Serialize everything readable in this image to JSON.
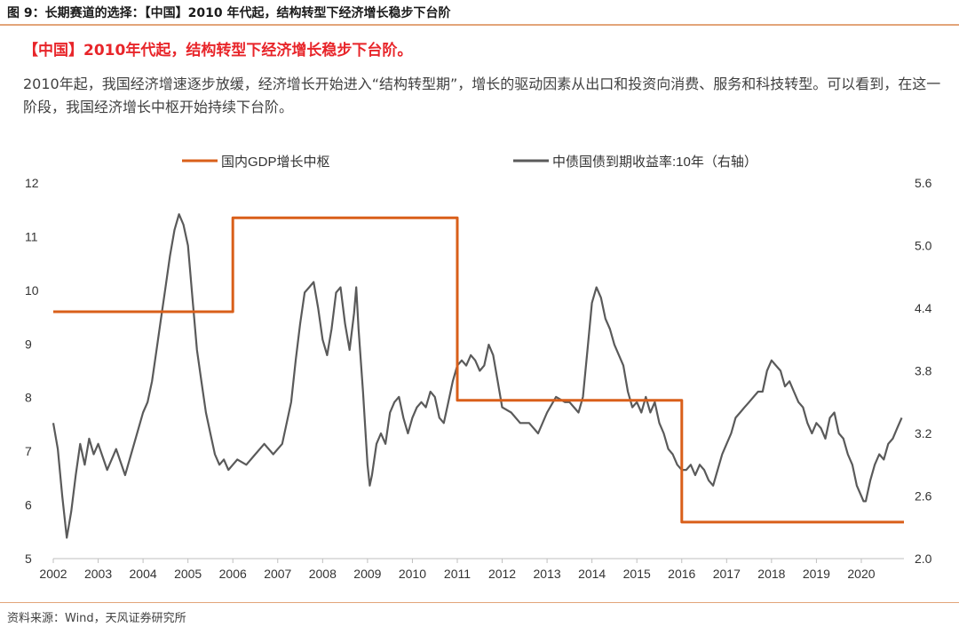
{
  "figure": {
    "title": "图 9：长期赛道的选择：【中国】2010 年代起，结构转型下经济增长稳步下台阶",
    "headline": "【中国】2010年代起，结构转型下经济增长稳步下台阶。",
    "body": "2010年起，我国经济增速逐步放缓，经济增长开始进入“结构转型期”，增长的驱动因素从出口和投资向消费、服务和科技转型。可以看到，在这一阶段，我国经济增长中枢开始持续下台阶。",
    "source": "资料来源：Wind，天风证券研究所"
  },
  "colors": {
    "gdp": "#d95f1a",
    "bond": "#5a5a5a",
    "rule": "#e3a57a",
    "headline": "#e8252a"
  },
  "chart_data": {
    "type": "line",
    "x_ticks": [
      "2002",
      "2003",
      "2004",
      "2005",
      "2006",
      "2007",
      "2008",
      "2009",
      "2010",
      "2011",
      "2012",
      "2013",
      "2014",
      "2015",
      "2016",
      "2017",
      "2018",
      "2019",
      "2020"
    ],
    "xlim": [
      2002,
      2020.95
    ],
    "left_axis": {
      "ylim": [
        5,
        12
      ],
      "ticks": [
        "12",
        "11",
        "10",
        "9",
        "8",
        "7",
        "6",
        "5"
      ]
    },
    "right_axis": {
      "ylim": [
        2.0,
        5.6
      ],
      "ticks": [
        "5.6",
        "5.0",
        "4.4",
        "3.8",
        "3.2",
        "2.6",
        "2.0"
      ]
    },
    "legend": {
      "placement": "top-center"
    },
    "series": [
      {
        "name": "国内GDP增长中枢",
        "axis": "left",
        "step": true,
        "x": [
          2002,
          2006,
          2006,
          2011,
          2011,
          2016,
          2016,
          2020.95
        ],
        "y": [
          9.6,
          9.6,
          11.35,
          11.35,
          7.95,
          7.95,
          5.68,
          5.68
        ]
      },
      {
        "name": "中债国债到期收益率:10年（右轴）",
        "axis": "right",
        "x": [
          2002.0,
          2002.1,
          2002.2,
          2002.3,
          2002.4,
          2002.5,
          2002.6,
          2002.7,
          2002.8,
          2002.9,
          2003.0,
          2003.2,
          2003.4,
          2003.6,
          2003.8,
          2004.0,
          2004.1,
          2004.2,
          2004.3,
          2004.4,
          2004.5,
          2004.6,
          2004.7,
          2004.8,
          2004.9,
          2005.0,
          2005.1,
          2005.2,
          2005.3,
          2005.4,
          2005.5,
          2005.6,
          2005.7,
          2005.8,
          2005.9,
          2006.0,
          2006.1,
          2006.3,
          2006.5,
          2006.7,
          2006.9,
          2007.1,
          2007.3,
          2007.4,
          2007.5,
          2007.6,
          2007.7,
          2007.8,
          2007.9,
          2008.0,
          2008.1,
          2008.2,
          2008.3,
          2008.4,
          2008.5,
          2008.6,
          2008.7,
          2008.75,
          2008.8,
          2008.9,
          2009.0,
          2009.05,
          2009.1,
          2009.2,
          2009.3,
          2009.4,
          2009.5,
          2009.6,
          2009.7,
          2009.8,
          2009.9,
          2010.0,
          2010.1,
          2010.2,
          2010.3,
          2010.4,
          2010.5,
          2010.6,
          2010.7,
          2010.8,
          2010.9,
          2011.0,
          2011.1,
          2011.2,
          2011.3,
          2011.4,
          2011.5,
          2011.6,
          2011.7,
          2011.8,
          2011.9,
          2012.0,
          2012.2,
          2012.4,
          2012.6,
          2012.8,
          2013.0,
          2013.2,
          2013.4,
          2013.5,
          2013.6,
          2013.7,
          2013.8,
          2013.9,
          2014.0,
          2014.1,
          2014.2,
          2014.3,
          2014.4,
          2014.5,
          2014.6,
          2014.7,
          2014.8,
          2014.9,
          2015.0,
          2015.1,
          2015.2,
          2015.3,
          2015.4,
          2015.5,
          2015.6,
          2015.7,
          2015.8,
          2015.9,
          2016.0,
          2016.1,
          2016.2,
          2016.3,
          2016.4,
          2016.5,
          2016.6,
          2016.7,
          2016.8,
          2016.9,
          2017.0,
          2017.1,
          2017.2,
          2017.3,
          2017.4,
          2017.5,
          2017.6,
          2017.7,
          2017.8,
          2017.9,
          2018.0,
          2018.1,
          2018.2,
          2018.3,
          2018.4,
          2018.5,
          2018.6,
          2018.7,
          2018.8,
          2018.9,
          2019.0,
          2019.1,
          2019.2,
          2019.3,
          2019.4,
          2019.5,
          2019.6,
          2019.7,
          2019.8,
          2019.9,
          2020.0,
          2020.05,
          2020.1,
          2020.2,
          2020.3,
          2020.4,
          2020.5,
          2020.6,
          2020.7,
          2020.8,
          2020.9
        ],
        "y": [
          3.3,
          3.05,
          2.6,
          2.2,
          2.45,
          2.8,
          3.1,
          2.9,
          3.15,
          3.0,
          3.1,
          2.85,
          3.05,
          2.8,
          3.1,
          3.4,
          3.5,
          3.7,
          4.0,
          4.3,
          4.6,
          4.9,
          5.15,
          5.3,
          5.2,
          5.0,
          4.5,
          4.0,
          3.7,
          3.4,
          3.2,
          3.0,
          2.9,
          2.95,
          2.85,
          2.9,
          2.95,
          2.9,
          3.0,
          3.1,
          3.0,
          3.1,
          3.5,
          3.9,
          4.25,
          4.55,
          4.6,
          4.65,
          4.4,
          4.1,
          3.95,
          4.2,
          4.55,
          4.6,
          4.25,
          4.0,
          4.35,
          4.6,
          4.2,
          3.6,
          2.9,
          2.7,
          2.8,
          3.1,
          3.2,
          3.1,
          3.4,
          3.5,
          3.55,
          3.35,
          3.2,
          3.35,
          3.45,
          3.5,
          3.45,
          3.6,
          3.55,
          3.35,
          3.3,
          3.5,
          3.7,
          3.85,
          3.9,
          3.85,
          3.95,
          3.9,
          3.8,
          3.85,
          4.05,
          3.95,
          3.7,
          3.45,
          3.4,
          3.3,
          3.3,
          3.2,
          3.4,
          3.55,
          3.5,
          3.5,
          3.45,
          3.4,
          3.55,
          4.0,
          4.45,
          4.6,
          4.5,
          4.3,
          4.2,
          4.05,
          3.95,
          3.85,
          3.6,
          3.45,
          3.5,
          3.4,
          3.55,
          3.4,
          3.5,
          3.3,
          3.2,
          3.05,
          3.0,
          2.9,
          2.85,
          2.85,
          2.9,
          2.8,
          2.9,
          2.85,
          2.75,
          2.7,
          2.85,
          3.0,
          3.1,
          3.2,
          3.35,
          3.4,
          3.45,
          3.5,
          3.55,
          3.6,
          3.6,
          3.8,
          3.9,
          3.85,
          3.8,
          3.65,
          3.7,
          3.6,
          3.5,
          3.45,
          3.3,
          3.2,
          3.3,
          3.25,
          3.15,
          3.35,
          3.4,
          3.2,
          3.15,
          3.0,
          2.9,
          2.7,
          2.6,
          2.55,
          2.55,
          2.75,
          2.9,
          3.0,
          2.95,
          3.1,
          3.15,
          3.25,
          3.35
        ]
      }
    ]
  }
}
